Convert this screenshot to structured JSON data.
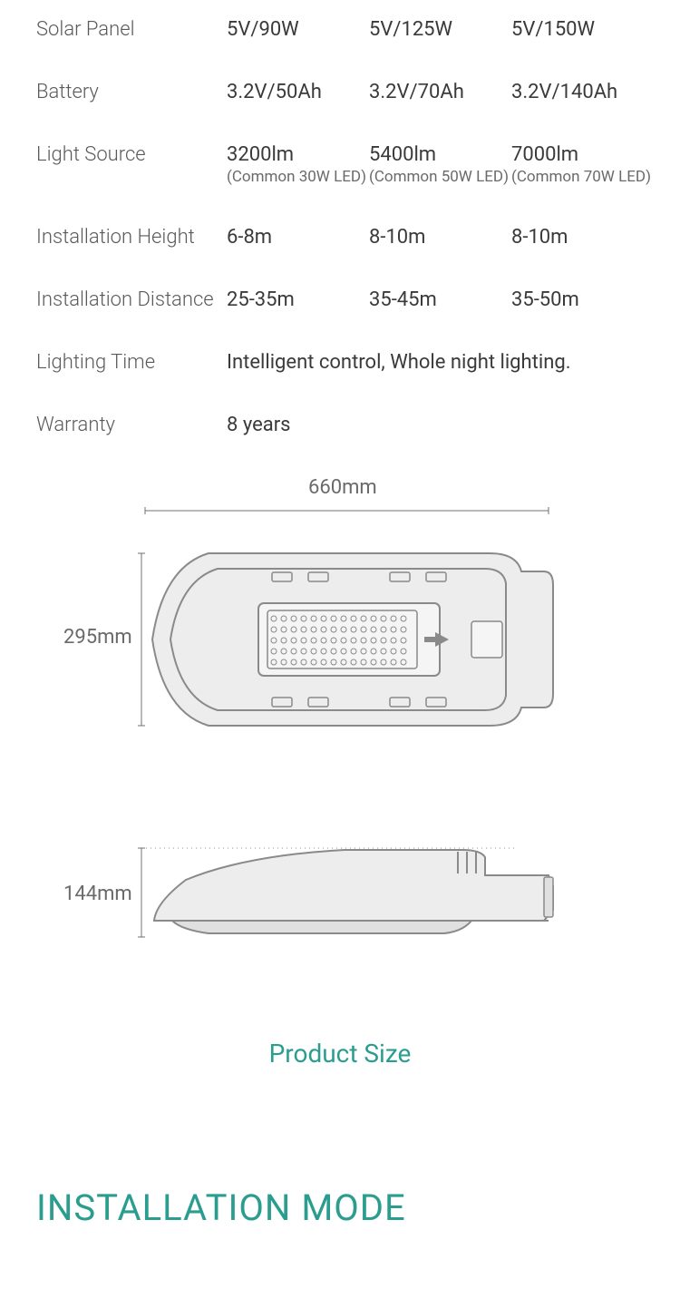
{
  "colors": {
    "text_primary": "#3a3a3a",
    "text_secondary": "#5a5a5a",
    "text_muted": "#6a6a6a",
    "teal": "#2a9d8f",
    "drawing_stroke": "#8a8a8a",
    "drawing_fill": "#e8e8e8",
    "bg": "#ffffff"
  },
  "specs": {
    "solar_panel": {
      "label": "Solar Panel",
      "v1": "5V/90W",
      "v2": "5V/125W",
      "v3": "5V/150W"
    },
    "battery": {
      "label": "Battery",
      "v1": "3.2V/50Ah",
      "v2": "3.2V/70Ah",
      "v3": "3.2V/140Ah"
    },
    "light_source": {
      "label": "Light Source",
      "v1": "3200lm",
      "v1_sub": "(Common 30W LED)",
      "v2": "5400lm",
      "v2_sub": "(Common 50W LED)",
      "v3": "7000lm",
      "v3_sub": "(Common 70W LED)"
    },
    "install_height": {
      "label": "Installation Height",
      "v1": "6-8m",
      "v2": "8-10m",
      "v3": "8-10m"
    },
    "install_distance": {
      "label": "Installation Distance",
      "v1": "25-35m",
      "v2": "35-45m",
      "v3": "35-50m"
    },
    "lighting_time": {
      "label": "Lighting Time",
      "value": "Intelligent control, Whole night lighting."
    },
    "warranty": {
      "label": "Warranty",
      "value": "8 years"
    }
  },
  "diagram": {
    "width_label": "660mm",
    "height_label": "295mm",
    "depth_label": "144mm",
    "stroke": "#8a8a8a",
    "fill": "#e8e8e8",
    "dim_stroke": "#707070"
  },
  "product_size_label": "Product Size",
  "installation_heading": "INSTALLATION MODE"
}
